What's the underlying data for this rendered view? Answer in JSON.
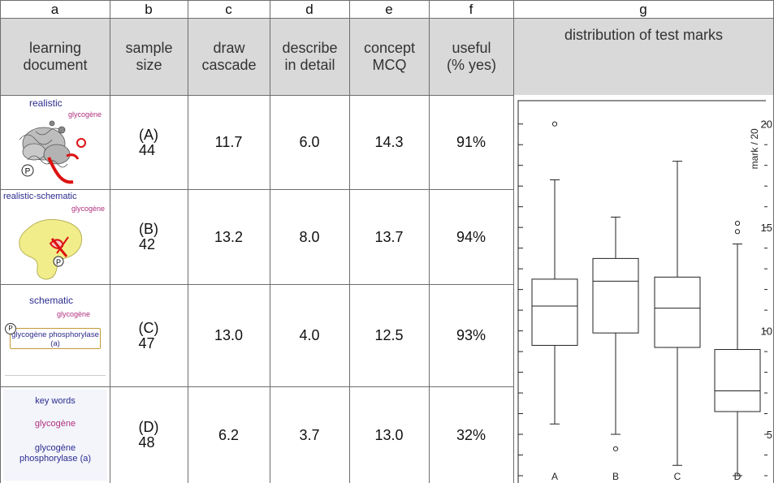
{
  "column_letters": [
    "a",
    "b",
    "c",
    "d",
    "e",
    "f",
    "g"
  ],
  "column_headers": {
    "a": [
      "learning",
      "document"
    ],
    "b": [
      "sample",
      "size"
    ],
    "c": [
      "draw",
      "cascade"
    ],
    "d": [
      "describe",
      "in detail"
    ],
    "e": [
      "concept",
      "MCQ"
    ],
    "f": [
      "useful",
      "(% yes)"
    ],
    "g": "distribution of test marks"
  },
  "rows": [
    {
      "doc_title": "realistic",
      "doc_sub": "glycogène",
      "group": "(A)",
      "n": "44",
      "draw": "11.7",
      "describe": "6.0",
      "mcq": "14.3",
      "useful": "91%"
    },
    {
      "doc_title": "realistic-schematic",
      "doc_sub": "glycogène",
      "group": "(B)",
      "n": "42",
      "draw": "13.2",
      "describe": "8.0",
      "mcq": "13.7",
      "useful": "94%"
    },
    {
      "doc_title": "schematic",
      "doc_sub": "glycogène",
      "doc_box": "glycogène phosphorylase (a)",
      "group": "(C)",
      "n": "47",
      "draw": "13.0",
      "describe": "4.0",
      "mcq": "12.5",
      "useful": "93%"
    },
    {
      "doc_title": "key words",
      "doc_sub": "glycogène",
      "doc_extra1": "glycogène",
      "doc_extra2": "phosphorylase (a)",
      "group": "(D)",
      "n": "48",
      "draw": "6.2",
      "describe": "3.7",
      "mcq": "13.0",
      "useful": "32%"
    }
  ],
  "p_symbol": "P",
  "chart_data": {
    "type": "boxplot",
    "title": "distribution of test marks",
    "ylabel": "mark / 20",
    "ylim": [
      3,
      20.5
    ],
    "yticks": [
      5,
      10,
      15,
      20
    ],
    "categories": [
      "A",
      "B",
      "C",
      "D"
    ],
    "boxes": [
      {
        "name": "A",
        "whisker_low": 5.5,
        "q1": 9.3,
        "median": 11.2,
        "q3": 12.5,
        "whisker_high": 17.3,
        "outliers": [
          20.0
        ]
      },
      {
        "name": "B",
        "whisker_low": 5.0,
        "q1": 9.9,
        "median": 12.4,
        "q3": 13.5,
        "whisker_high": 15.5,
        "outliers": [
          4.3
        ]
      },
      {
        "name": "C",
        "whisker_low": 3.5,
        "q1": 9.2,
        "median": 11.1,
        "q3": 12.6,
        "whisker_high": 18.2,
        "outliers": []
      },
      {
        "name": "D",
        "whisker_low": 3.0,
        "q1": 6.1,
        "median": 7.1,
        "q3": 9.1,
        "whisker_high": 14.2,
        "outliers": [
          14.8,
          15.2
        ]
      }
    ]
  }
}
